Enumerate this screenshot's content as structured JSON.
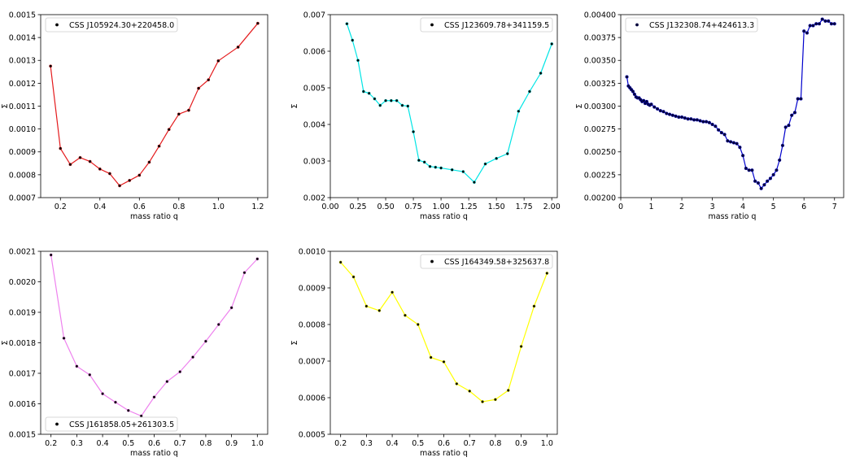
{
  "chart_data": [
    {
      "type": "line",
      "xlabel": "mass ratio q",
      "ylabel": "Σ",
      "legend": {
        "label": "CSS J105924.30+220458.0",
        "position": "upper-left"
      },
      "colors": {
        "line": "#e41a1c",
        "marker": "#000000"
      },
      "xlim": [
        0.1,
        1.25
      ],
      "ylim": [
        0.0007,
        0.0015
      ],
      "xticks": [
        0.2,
        0.4,
        0.6,
        0.8,
        1.0,
        1.2
      ],
      "xtick_labels": [
        "0.2",
        "0.4",
        "0.6",
        "0.8",
        "1.0",
        "1.2"
      ],
      "yticks": [
        0.0007,
        0.0008,
        0.0009,
        0.001,
        0.0011,
        0.0012,
        0.0013,
        0.0014,
        0.0015
      ],
      "ytick_labels": [
        "0.0007",
        "0.0008",
        "0.0009",
        "0.0010",
        "0.0011",
        "0.0012",
        "0.0013",
        "0.0014",
        "0.0015"
      ],
      "x": [
        0.15,
        0.2,
        0.25,
        0.3,
        0.35,
        0.4,
        0.45,
        0.5,
        0.55,
        0.6,
        0.65,
        0.7,
        0.75,
        0.8,
        0.85,
        0.9,
        0.95,
        1.0,
        1.1,
        1.2
      ],
      "y": [
        0.001275,
        0.000915,
        0.000845,
        0.000875,
        0.000858,
        0.000825,
        0.000805,
        0.000752,
        0.000775,
        0.000798,
        0.000855,
        0.000925,
        0.000998,
        0.001065,
        0.001082,
        0.001178,
        0.001215,
        0.001298,
        0.001358,
        0.001462
      ]
    },
    {
      "type": "line",
      "xlabel": "mass ratio q",
      "ylabel": "Σ",
      "legend": {
        "label": "CSS J123609.78+341159.5",
        "position": "upper-right"
      },
      "colors": {
        "line": "#00e5e5",
        "marker": "#000000"
      },
      "xlim": [
        0.0,
        2.05
      ],
      "ylim": [
        0.002,
        0.007
      ],
      "xticks": [
        0.0,
        0.25,
        0.5,
        0.75,
        1.0,
        1.25,
        1.5,
        1.75,
        2.0
      ],
      "xtick_labels": [
        "0.00",
        "0.25",
        "0.50",
        "0.75",
        "1.00",
        "1.25",
        "1.50",
        "1.75",
        "2.00"
      ],
      "yticks": [
        0.002,
        0.003,
        0.004,
        0.005,
        0.006,
        0.007
      ],
      "ytick_labels": [
        "0.002",
        "0.003",
        "0.004",
        "0.005",
        "0.006",
        "0.007"
      ],
      "x": [
        0.15,
        0.2,
        0.25,
        0.3,
        0.35,
        0.4,
        0.45,
        0.5,
        0.55,
        0.6,
        0.65,
        0.7,
        0.75,
        0.8,
        0.85,
        0.9,
        0.95,
        1.0,
        1.1,
        1.2,
        1.3,
        1.4,
        1.5,
        1.6,
        1.7,
        1.8,
        1.9,
        2.0
      ],
      "y": [
        0.00675,
        0.0063,
        0.00575,
        0.0049,
        0.00485,
        0.0047,
        0.00452,
        0.00465,
        0.00465,
        0.00465,
        0.00452,
        0.0045,
        0.0038,
        0.00302,
        0.00297,
        0.00285,
        0.00283,
        0.00281,
        0.00276,
        0.00271,
        0.00242,
        0.00292,
        0.00307,
        0.0032,
        0.00436,
        0.0049,
        0.0054,
        0.0062
      ]
    },
    {
      "type": "line",
      "xlabel": "mass ratio q",
      "ylabel": "Σ",
      "legend": {
        "label": "CSS J132308.74+424613.3",
        "position": "upper-left"
      },
      "colors": {
        "line": "#0000cd",
        "marker": "#00003a"
      },
      "xlim": [
        0.0,
        7.3
      ],
      "ylim": [
        0.002,
        0.004
      ],
      "xticks": [
        0,
        1,
        2,
        3,
        4,
        5,
        6,
        7
      ],
      "xtick_labels": [
        "0",
        "1",
        "2",
        "3",
        "4",
        "5",
        "6",
        "7"
      ],
      "yticks": [
        0.002,
        0.00225,
        0.0025,
        0.00275,
        0.003,
        0.00325,
        0.0035,
        0.00375,
        0.004
      ],
      "ytick_labels": [
        "0.00200",
        "0.00225",
        "0.00250",
        "0.00275",
        "0.00300",
        "0.00325",
        "0.00350",
        "0.00375",
        "0.00400"
      ],
      "x": [
        0.2,
        0.25,
        0.3,
        0.35,
        0.4,
        0.45,
        0.5,
        0.55,
        0.6,
        0.65,
        0.7,
        0.75,
        0.8,
        0.85,
        0.9,
        0.95,
        1.0,
        1.1,
        1.2,
        1.3,
        1.4,
        1.5,
        1.6,
        1.7,
        1.8,
        1.9,
        2.0,
        2.1,
        2.2,
        2.3,
        2.4,
        2.5,
        2.6,
        2.7,
        2.8,
        2.9,
        3.0,
        3.1,
        3.2,
        3.3,
        3.4,
        3.5,
        3.6,
        3.7,
        3.8,
        3.9,
        4.0,
        4.1,
        4.2,
        4.3,
        4.4,
        4.5,
        4.6,
        4.7,
        4.8,
        4.9,
        5.0,
        5.1,
        5.2,
        5.3,
        5.4,
        5.5,
        5.6,
        5.7,
        5.8,
        5.9,
        6.0,
        6.1,
        6.2,
        6.3,
        6.4,
        6.5,
        6.6,
        6.7,
        6.8,
        6.9,
        7.0
      ],
      "y": [
        0.00332,
        0.00322,
        0.0032,
        0.00318,
        0.00316,
        0.00313,
        0.0031,
        0.00309,
        0.00309,
        0.00307,
        0.00305,
        0.00306,
        0.00303,
        0.00305,
        0.00302,
        0.00301,
        0.00302,
        0.00299,
        0.00297,
        0.00295,
        0.00294,
        0.00292,
        0.00291,
        0.0029,
        0.00289,
        0.00288,
        0.00288,
        0.00287,
        0.00286,
        0.00286,
        0.00285,
        0.00285,
        0.00284,
        0.00283,
        0.00283,
        0.00282,
        0.0028,
        0.00278,
        0.00274,
        0.00271,
        0.00269,
        0.00262,
        0.00261,
        0.0026,
        0.00259,
        0.00255,
        0.00246,
        0.00232,
        0.0023,
        0.0023,
        0.00218,
        0.00216,
        0.0021,
        0.00214,
        0.00218,
        0.00221,
        0.00225,
        0.0023,
        0.00241,
        0.00257,
        0.00277,
        0.00279,
        0.0029,
        0.00293,
        0.00308,
        0.00308,
        0.00382,
        0.0038,
        0.00388,
        0.00388,
        0.0039,
        0.0039,
        0.00395,
        0.00393,
        0.00393,
        0.0039,
        0.0039
      ],
      "x_note": ""
    },
    {
      "type": "line",
      "xlabel": "mass ratio q",
      "ylabel": "Σ",
      "legend": {
        "label": "CSS J161858.05+261303.5",
        "position": "lower-left"
      },
      "colors": {
        "line": "#ee82ee",
        "marker": "#000000"
      },
      "xlim": [
        0.16,
        1.04
      ],
      "ylim": [
        0.0015,
        0.0021
      ],
      "xticks": [
        0.2,
        0.3,
        0.4,
        0.5,
        0.6,
        0.7,
        0.8,
        0.9,
        1.0
      ],
      "xtick_labels": [
        "0.2",
        "0.3",
        "0.4",
        "0.5",
        "0.6",
        "0.7",
        "0.8",
        "0.9",
        "1.0"
      ],
      "yticks": [
        0.0015,
        0.0016,
        0.0017,
        0.0018,
        0.0019,
        0.002,
        0.0021
      ],
      "ytick_labels": [
        "0.0015",
        "0.0016",
        "0.0017",
        "0.0018",
        "0.0019",
        "0.0020",
        "0.0021"
      ],
      "x": [
        0.2,
        0.25,
        0.3,
        0.35,
        0.4,
        0.45,
        0.5,
        0.55,
        0.6,
        0.65,
        0.7,
        0.75,
        0.8,
        0.85,
        0.9,
        0.95,
        1.0
      ],
      "y": [
        0.002088,
        0.001815,
        0.001723,
        0.001695,
        0.001633,
        0.001605,
        0.001578,
        0.00156,
        0.001622,
        0.001673,
        0.001705,
        0.001753,
        0.001805,
        0.00186,
        0.001915,
        0.00203,
        0.002075
      ]
    },
    {
      "type": "line",
      "xlabel": "mass ratio q",
      "ylabel": "Σ",
      "legend": {
        "label": "CSS J164349.58+325637.8",
        "position": "upper-right"
      },
      "colors": {
        "line": "#ffff00",
        "marker": "#000000"
      },
      "xlim": [
        0.16,
        1.04
      ],
      "ylim": [
        0.0005,
        0.001
      ],
      "xticks": [
        0.2,
        0.3,
        0.4,
        0.5,
        0.6,
        0.7,
        0.8,
        0.9,
        1.0
      ],
      "xtick_labels": [
        "0.2",
        "0.3",
        "0.4",
        "0.5",
        "0.6",
        "0.7",
        "0.8",
        "0.9",
        "1.0"
      ],
      "yticks": [
        0.0005,
        0.0006,
        0.0007,
        0.0008,
        0.0009,
        0.001
      ],
      "ytick_labels": [
        "0.0005",
        "0.0006",
        "0.0007",
        "0.0008",
        "0.0009",
        "0.0010"
      ],
      "x": [
        0.2,
        0.25,
        0.3,
        0.35,
        0.4,
        0.45,
        0.5,
        0.55,
        0.6,
        0.65,
        0.7,
        0.75,
        0.8,
        0.85,
        0.9,
        0.95,
        1.0
      ],
      "y": [
        0.00097,
        0.00093,
        0.00085,
        0.000838,
        0.000888,
        0.000825,
        0.0008,
        0.00071,
        0.000698,
        0.000638,
        0.000618,
        0.000589,
        0.000595,
        0.00062,
        0.00074,
        0.00085,
        0.00094
      ]
    }
  ]
}
